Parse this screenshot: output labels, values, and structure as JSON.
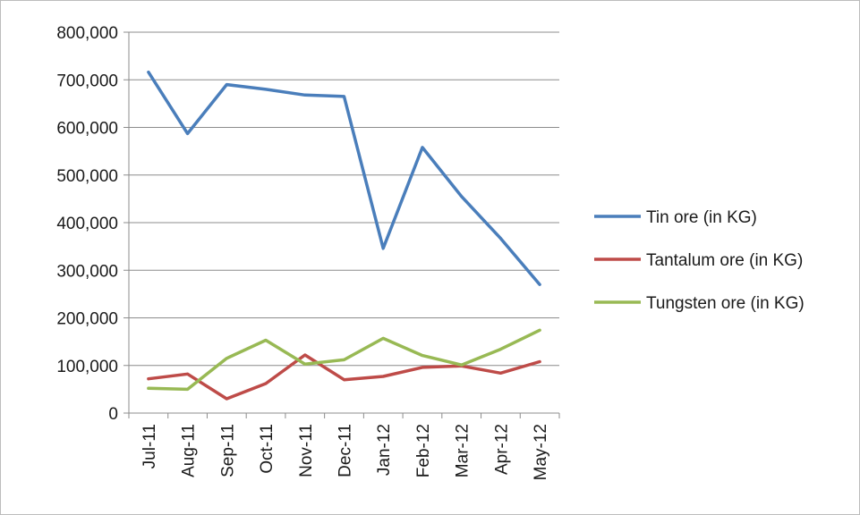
{
  "chart_data": {
    "type": "line",
    "title": "",
    "xlabel": "",
    "ylabel": "",
    "categories": [
      "Jul-11",
      "Aug-11",
      "Sep-11",
      "Oct-11",
      "Nov-11",
      "Dec-11",
      "Jan-12",
      "Feb-12",
      "Mar-12",
      "Apr-12",
      "May-12"
    ],
    "ylim": [
      0,
      800000
    ],
    "yticks": [
      "0",
      "100,000",
      "200,000",
      "300,000",
      "400,000",
      "500,000",
      "600,000",
      "700,000",
      "800,000"
    ],
    "grid": true,
    "legend": "right",
    "series": [
      {
        "name": "Tin ore (in KG)",
        "color": "#4a7ebb",
        "values": [
          716000,
          587000,
          690000,
          680000,
          668000,
          665000,
          346000,
          558000,
          455000,
          367000,
          270000
        ]
      },
      {
        "name": "Tantalum ore (in KG)",
        "color": "#be4b48",
        "values": [
          72000,
          82000,
          30000,
          62000,
          122000,
          70000,
          77000,
          96000,
          99000,
          84000,
          108000
        ]
      },
      {
        "name": "Tungsten ore (in KG)",
        "color": "#98b954",
        "values": [
          52000,
          50000,
          115000,
          153000,
          103000,
          112000,
          157000,
          121000,
          101000,
          134000,
          174000
        ]
      }
    ]
  }
}
